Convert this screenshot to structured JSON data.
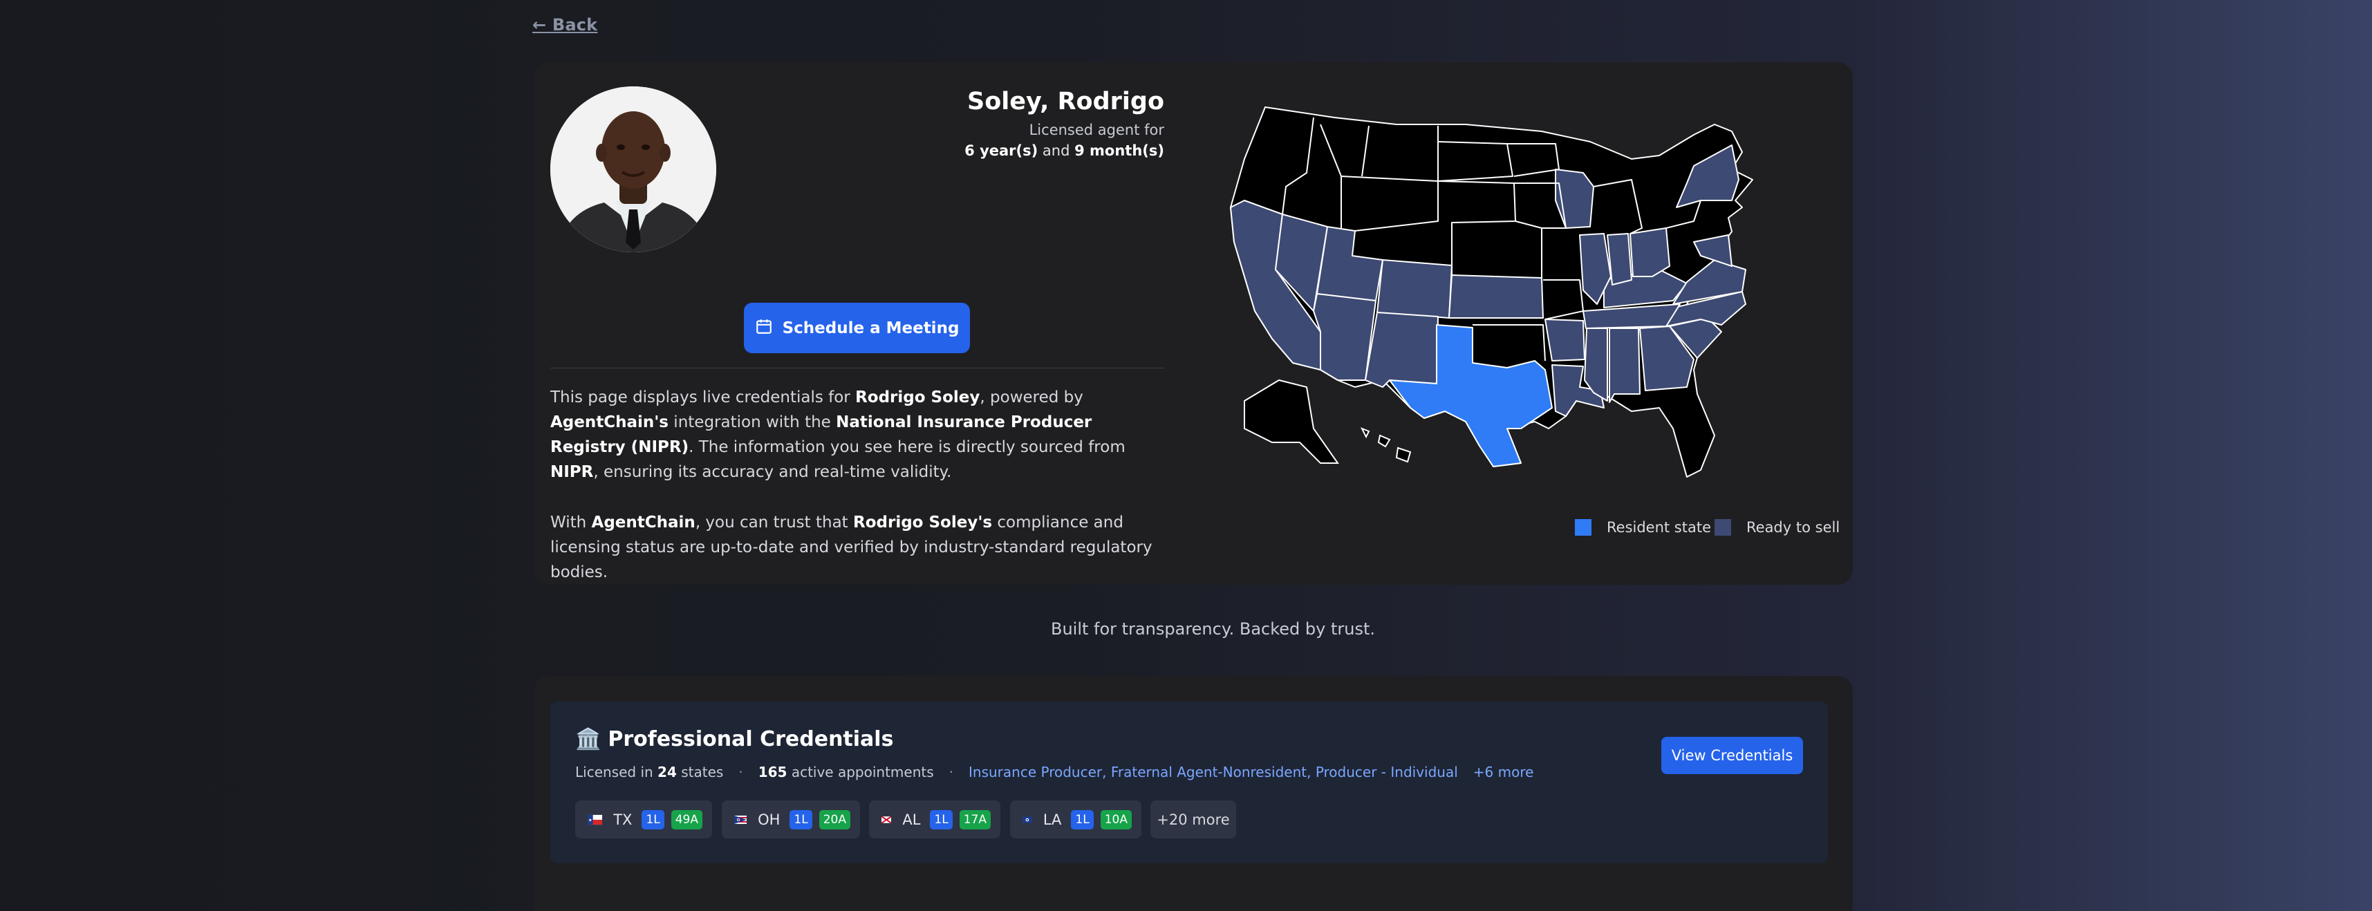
{
  "nav": {
    "back_label": "← Back"
  },
  "agent": {
    "name": "Soley, Rodrigo",
    "licensed_for_label": "Licensed agent for",
    "years": "6 year(s)",
    "and_word": "and",
    "months": "9 month(s)"
  },
  "actions": {
    "schedule_label": "Schedule a Meeting",
    "view_credentials_label": "View Credentials"
  },
  "description": {
    "p1": {
      "t1": "This page displays live credentials for ",
      "b1": "Rodrigo Soley",
      "t2": ", powered by ",
      "b2": "AgentChain's",
      "t3": " integration with the ",
      "b3": "National Insurance Producer Registry (NIPR)",
      "t4": ". The information you see here is directly sourced from ",
      "b4": "NIPR",
      "t5": ", ensuring its accuracy and real-time validity."
    },
    "p2": {
      "t1": "With ",
      "b1": "AgentChain",
      "t2": ", you can trust that ",
      "b2": "Rodrigo Soley's",
      "t3": " compliance and licensing status are up-to-date and verified by industry-standard regulatory bodies."
    }
  },
  "map": {
    "legend": {
      "resident": "Resident state",
      "ready": "Ready to sell"
    },
    "colors": {
      "resident": "#2f7cf6",
      "ready": "#3d4a73",
      "other": "#000000",
      "border": "#ffffff"
    }
  },
  "tagline": "Built for transparency. Backed by trust.",
  "credentials": {
    "icon": "🏛️",
    "title": "Professional Credentials",
    "licensed_prefix": "Licensed in",
    "states_count": "24",
    "states_suffix": "states",
    "appointments_count": "165",
    "appointments_suffix": "active appointments",
    "types": "Insurance Producer, Fraternal Agent-Nonresident, Producer - Individual",
    "more_types": "+6 more",
    "chips": [
      {
        "state": "TX",
        "flag": "texas-flag-icon",
        "tag1": "1L",
        "tag2": "49A"
      },
      {
        "state": "OH",
        "flag": "ohio-flag-icon",
        "tag1": "1L",
        "tag2": "20A"
      },
      {
        "state": "AL",
        "flag": "alabama-flag-icon",
        "tag1": "1L",
        "tag2": "17A"
      },
      {
        "state": "LA",
        "flag": "louisiana-flag-icon",
        "tag1": "1L",
        "tag2": "10A"
      }
    ],
    "more_chip": "+20 more"
  }
}
